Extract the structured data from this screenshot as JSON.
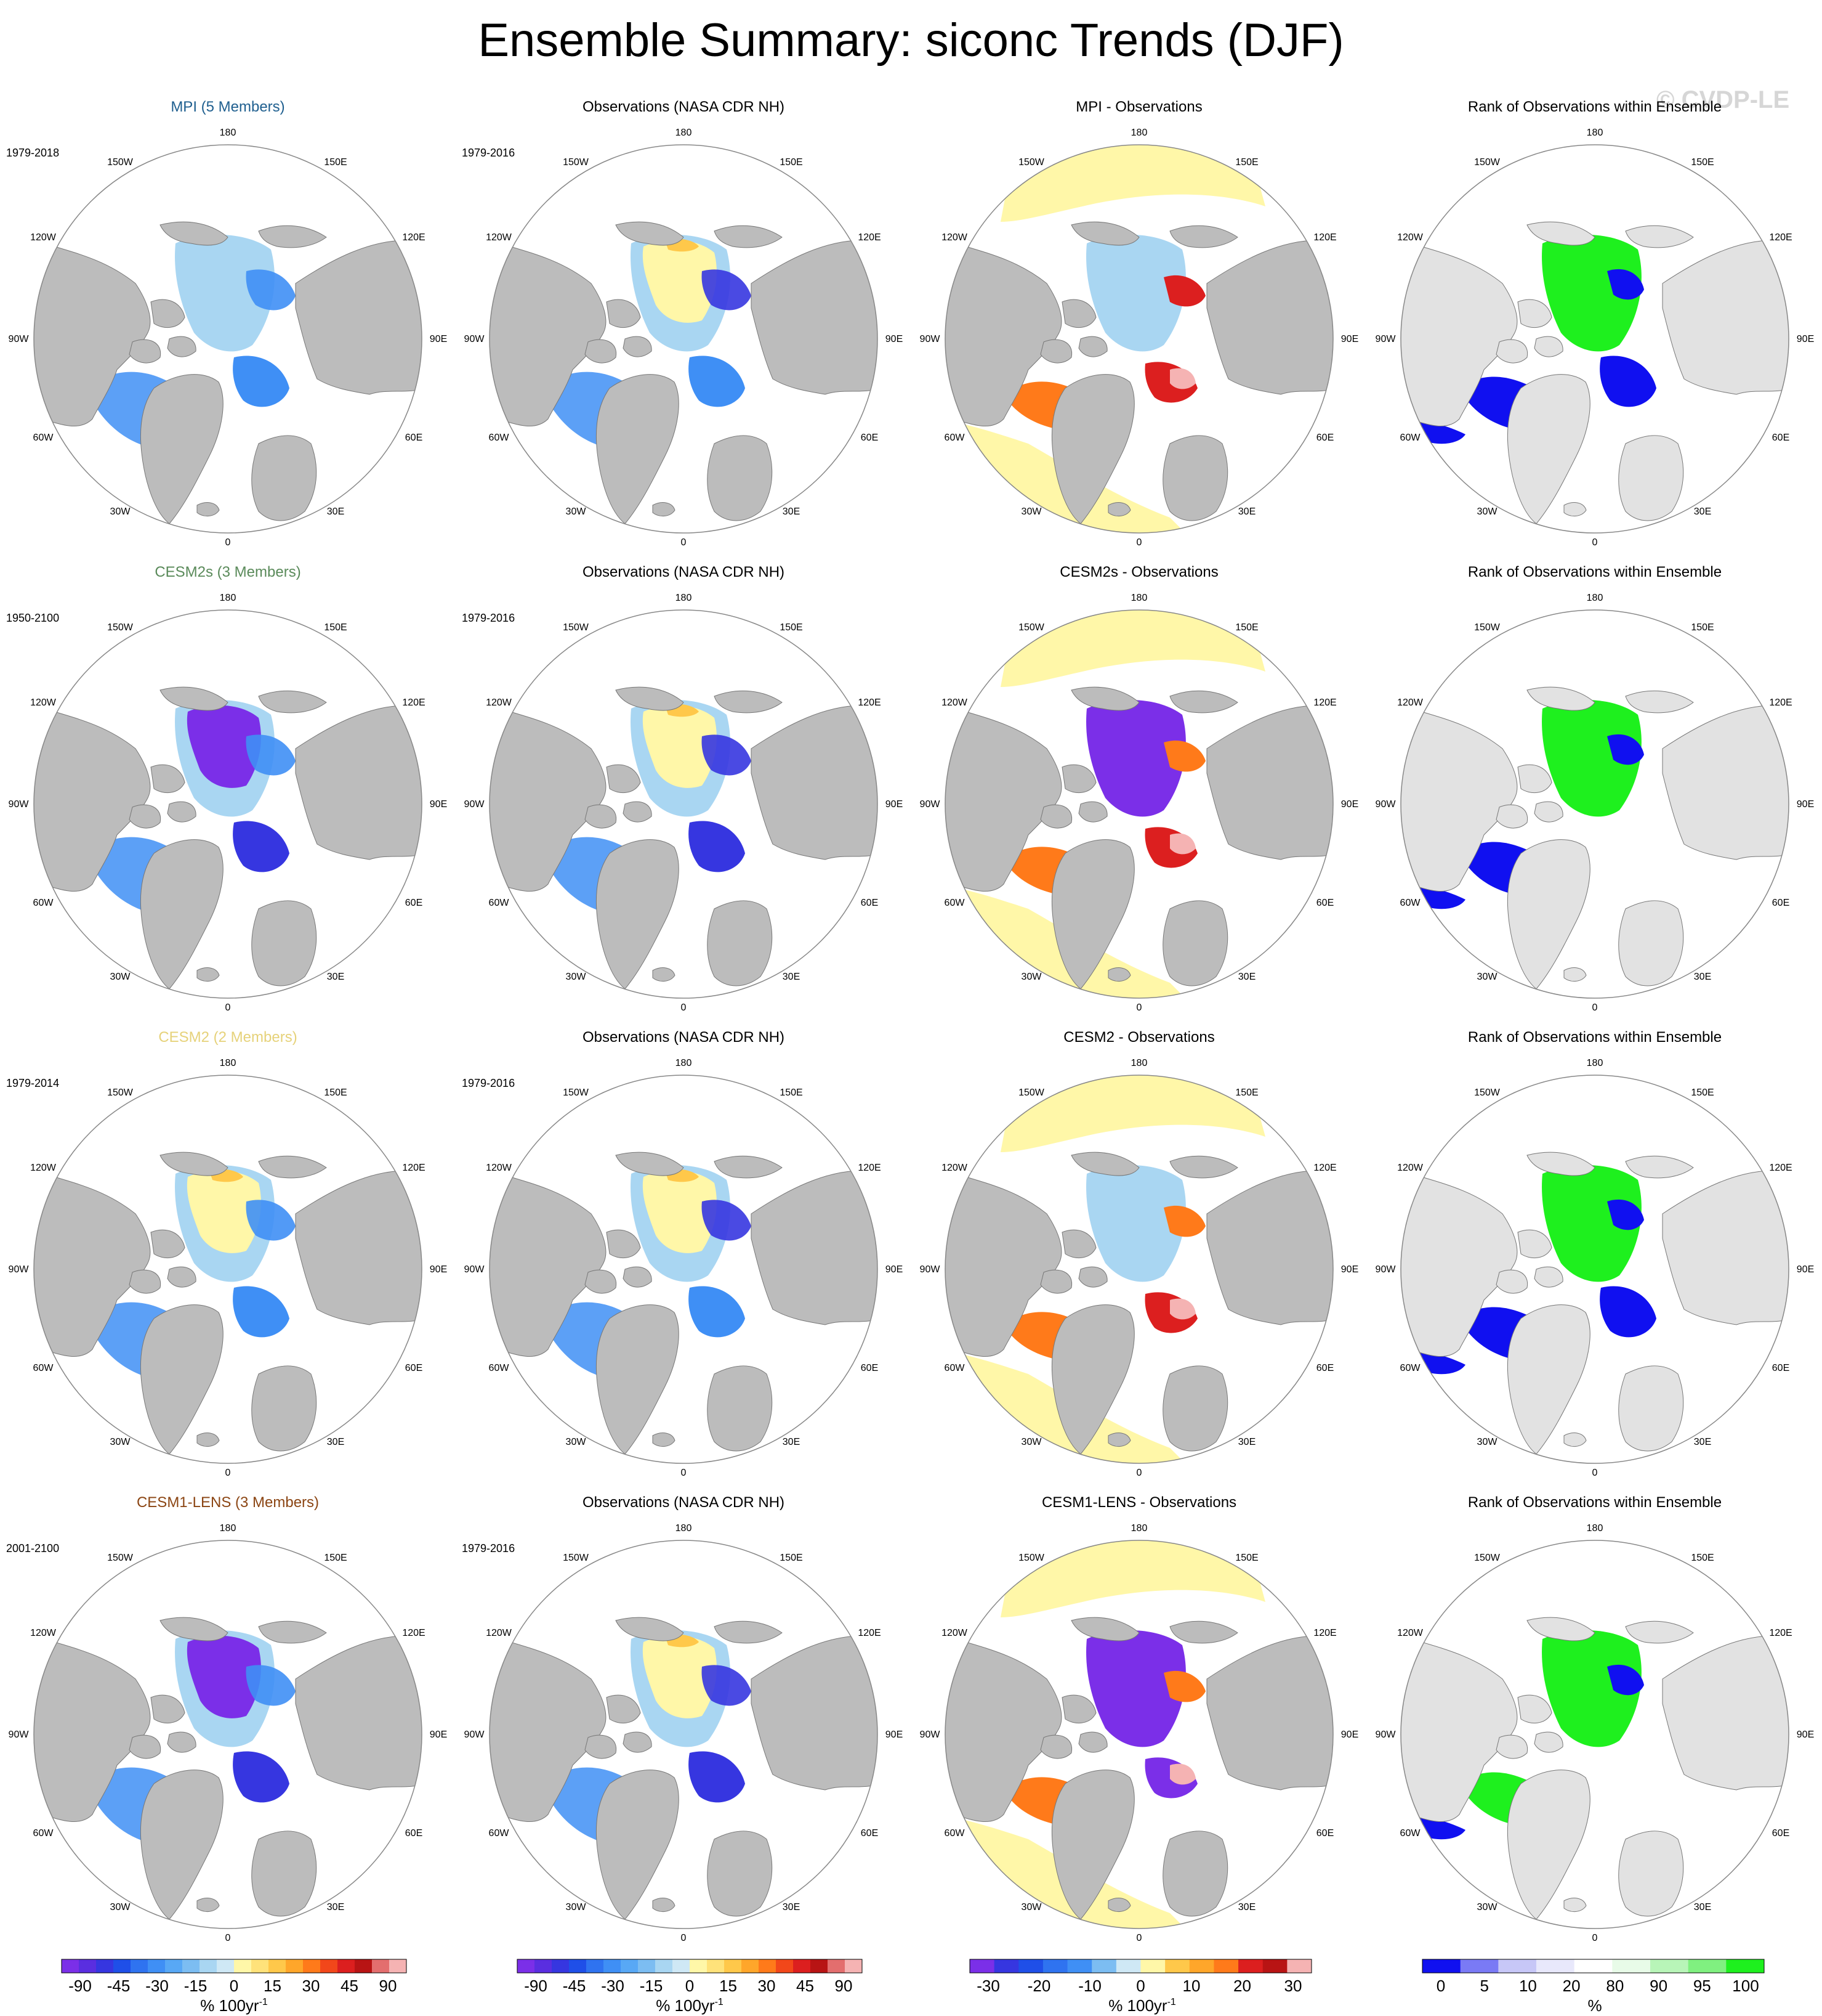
{
  "title": "Ensemble Summary: siconc Trends (DJF)",
  "watermark": "© CVDP-LE",
  "rows": [
    {
      "model_title": "MPI (5 Members)",
      "model_color": "#1f5f8f",
      "model_years": "1979-2018",
      "obs_title": "Observations (NASA CDR NH)",
      "obs_years": "1979-2016",
      "diff_title": "MPI - Observations",
      "rank_title": "Rank of Observations within Ensemble"
    },
    {
      "model_title": "CESM2s (3 Members)",
      "model_color": "#5a8a5a",
      "model_years": "1950-2100",
      "obs_title": "Observations (NASA CDR NH)",
      "obs_years": "1979-2016",
      "diff_title": "CESM2s - Observations",
      "rank_title": "Rank of Observations within Ensemble"
    },
    {
      "model_title": "CESM2 (2 Members)",
      "model_color": "#e6d27a",
      "model_years": "1979-2014",
      "obs_title": "Observations (NASA CDR NH)",
      "obs_years": "1979-2016",
      "diff_title": "CESM2 - Observations",
      "rank_title": "Rank of Observations within Ensemble"
    },
    {
      "model_title": "CESM1-LENS (3 Members)",
      "model_color": "#8b4513",
      "model_years": "2001-2100",
      "obs_title": "Observations (NASA CDR NH)",
      "obs_years": "1979-2016",
      "diff_title": "CESM1-LENS - Observations",
      "rank_title": "Rank of Observations within Ensemble"
    }
  ],
  "map_labels": {
    "top": "180",
    "bottom": "0",
    "upper_left": "150W",
    "upper_right": "150E",
    "mid_upper_left": "120W",
    "mid_upper_right": "120E",
    "left": "90W",
    "right": "90E",
    "mid_lower_left": "60W",
    "mid_lower_right": "60E",
    "lower_left": "30W",
    "lower_right": "30E"
  },
  "colorbars": {
    "trend": {
      "unit": "% 100yr",
      "unit_sup": "-1",
      "tick_labels": [
        "-90",
        "-45",
        "-30",
        "-15",
        "0",
        "15",
        "30",
        "45",
        "90"
      ],
      "colors": [
        "#7b2fe8",
        "#5a2ee0",
        "#3636e0",
        "#1f4fe8",
        "#2f73f0",
        "#3f8ff5",
        "#58a8f5",
        "#7cbdf2",
        "#a9d6f2",
        "#cfe8f5",
        "#fff7a8",
        "#ffe27a",
        "#ffc84a",
        "#ffa62a",
        "#ff7a1a",
        "#f2471a",
        "#dc1f1f",
        "#b81414",
        "#e36e6e",
        "#f5b3b3"
      ]
    },
    "diff": {
      "unit": "% 100yr",
      "unit_sup": "-1",
      "tick_labels": [
        "-30",
        "-20",
        "-10",
        "0",
        "10",
        "20",
        "30"
      ],
      "colors": [
        "#7b2fe8",
        "#3636e0",
        "#1f4fe8",
        "#2f73f0",
        "#3f8ff5",
        "#7cbdf2",
        "#cfe8f5",
        "#fff7a8",
        "#ffc84a",
        "#ffa62a",
        "#ff7a1a",
        "#dc1f1f",
        "#b81414",
        "#f5b3b3"
      ]
    },
    "rank": {
      "unit": "%",
      "tick_labels": [
        "0",
        "5",
        "10",
        "20",
        "80",
        "90",
        "95",
        "100"
      ],
      "colors": [
        "#1010f0",
        "#7a7af5",
        "#c7c7f7",
        "#e8e8fb",
        "#ffffff",
        "#e8fbe8",
        "#b8f5b8",
        "#80f080",
        "#1ef01e"
      ]
    }
  },
  "colors": {
    "land": "#bcbcbc",
    "land_rank": "#e2e2e2",
    "ocean": "#ffffff",
    "trend_positive_light": "#fff7a8",
    "trend_negative_light": "#a9d6f2",
    "trend_negative_mid": "#3f8ff5",
    "trend_negative_strong": "#3636e0",
    "trend_negative_extreme": "#7b2fe8",
    "diff_positive_strong": "#dc1f1f",
    "diff_positive_mid": "#ff7a1a",
    "diff_positive_pink": "#f5b3b3",
    "rank_high": "#1ef01e",
    "rank_low": "#1010f0"
  }
}
